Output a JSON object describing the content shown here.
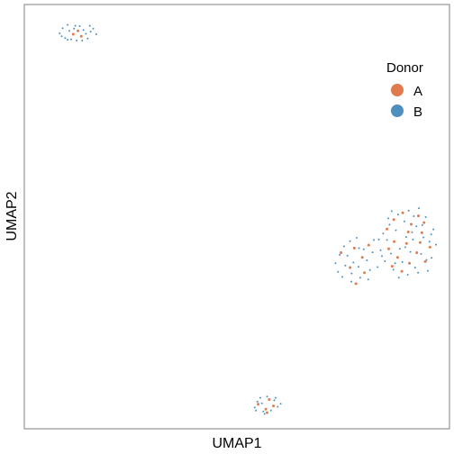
{
  "chart_data": {
    "type": "scatter",
    "title": "",
    "xlabel": "UMAP1",
    "ylabel": "UMAP2",
    "grid": false,
    "legend": {
      "title": "Donor",
      "placement": "top-right",
      "entries": [
        {
          "label": "A",
          "color": "#E07B4F"
        },
        {
          "label": "B",
          "color": "#4F8FC0"
        }
      ]
    },
    "xlim": [
      0,
      100
    ],
    "ylim": [
      0,
      100
    ],
    "series": [
      {
        "name": "A",
        "color": "#E07B4F",
        "points": [
          [
            11.5,
            93.0
          ],
          [
            12.6,
            93.8
          ],
          [
            13.4,
            92.5
          ],
          [
            55.0,
            5.8
          ],
          [
            56.8,
            4.6
          ],
          [
            57.6,
            6.9
          ],
          [
            58.6,
            5.4
          ],
          [
            57.1,
            3.8
          ],
          [
            74.5,
            41.5
          ],
          [
            77.6,
            42.6
          ],
          [
            76.6,
            38.0
          ],
          [
            79.5,
            40.4
          ],
          [
            81.0,
            43.3
          ],
          [
            80.0,
            36.8
          ],
          [
            78.0,
            34.2
          ],
          [
            85.3,
            47.1
          ],
          [
            86.9,
            49.3
          ],
          [
            89.0,
            50.9
          ],
          [
            91.0,
            48.2
          ],
          [
            92.7,
            50.2
          ],
          [
            93.5,
            46.2
          ],
          [
            87.0,
            44.1
          ],
          [
            89.9,
            43.7
          ],
          [
            92.3,
            41.5
          ],
          [
            94.3,
            39.4
          ],
          [
            90.6,
            39.0
          ],
          [
            87.8,
            40.4
          ],
          [
            85.7,
            42.4
          ],
          [
            88.8,
            37.1
          ],
          [
            93.1,
            43.9
          ],
          [
            95.4,
            42.8
          ],
          [
            90.3,
            46.4
          ],
          [
            86.5,
            38.3
          ],
          [
            94.0,
            48.6
          ]
        ]
      },
      {
        "name": "B",
        "color": "#4F8FC0",
        "points": [
          [
            8.3,
            93.2
          ],
          [
            9.0,
            94.4
          ],
          [
            9.6,
            92.1
          ],
          [
            10.2,
            95.2
          ],
          [
            10.6,
            93.8
          ],
          [
            11.0,
            91.8
          ],
          [
            12.0,
            95.0
          ],
          [
            12.3,
            91.5
          ],
          [
            13.0,
            94.9
          ],
          [
            13.9,
            94.0
          ],
          [
            14.5,
            93.1
          ],
          [
            14.9,
            92.0
          ],
          [
            15.6,
            93.6
          ],
          [
            16.2,
            94.3
          ],
          [
            16.9,
            93.0
          ],
          [
            15.4,
            95.0
          ],
          [
            13.6,
            91.5
          ],
          [
            11.7,
            94.3
          ],
          [
            10.2,
            91.7
          ],
          [
            8.8,
            92.5
          ],
          [
            54.2,
            5.0
          ],
          [
            54.8,
            6.4
          ],
          [
            55.5,
            7.3
          ],
          [
            56.2,
            4.1
          ],
          [
            57.1,
            7.6
          ],
          [
            58.0,
            4.3
          ],
          [
            58.8,
            6.7
          ],
          [
            59.6,
            5.2
          ],
          [
            60.3,
            5.9
          ],
          [
            55.9,
            6.0
          ],
          [
            56.5,
            3.5
          ],
          [
            59.1,
            7.3
          ],
          [
            54.5,
            4.3
          ],
          [
            73.2,
            39.0
          ],
          [
            73.8,
            37.0
          ],
          [
            74.8,
            35.8
          ],
          [
            75.2,
            43.0
          ],
          [
            76.0,
            40.8
          ],
          [
            76.6,
            44.2
          ],
          [
            77.0,
            36.6
          ],
          [
            77.4,
            39.2
          ],
          [
            78.2,
            45.0
          ],
          [
            78.6,
            38.2
          ],
          [
            79.0,
            35.6
          ],
          [
            79.8,
            42.3
          ],
          [
            80.6,
            39.7
          ],
          [
            81.3,
            37.4
          ],
          [
            81.9,
            41.6
          ],
          [
            82.2,
            44.5
          ],
          [
            80.9,
            35.2
          ],
          [
            78.7,
            42.6
          ],
          [
            75.5,
            38.5
          ],
          [
            74.2,
            41.0
          ],
          [
            76.9,
            34.7
          ],
          [
            83.4,
            44.6
          ],
          [
            83.8,
            42.1
          ],
          [
            84.4,
            46.0
          ],
          [
            84.8,
            39.5
          ],
          [
            85.3,
            44.5
          ],
          [
            85.9,
            48.1
          ],
          [
            86.2,
            41.3
          ],
          [
            86.8,
            37.5
          ],
          [
            87.4,
            46.8
          ],
          [
            87.9,
            50.5
          ],
          [
            88.3,
            42.4
          ],
          [
            88.9,
            39.3
          ],
          [
            89.4,
            48.9
          ],
          [
            89.8,
            45.2
          ],
          [
            90.4,
            51.4
          ],
          [
            90.8,
            41.7
          ],
          [
            91.4,
            44.6
          ],
          [
            91.9,
            38.0
          ],
          [
            92.2,
            47.7
          ],
          [
            92.8,
            52.0
          ],
          [
            93.3,
            41.2
          ],
          [
            93.9,
            45.1
          ],
          [
            94.4,
            49.9
          ],
          [
            94.9,
            37.2
          ],
          [
            95.3,
            44.1
          ],
          [
            95.8,
            40.3
          ],
          [
            96.2,
            47.0
          ],
          [
            96.8,
            43.4
          ],
          [
            84.1,
            40.7
          ],
          [
            86.4,
            51.3
          ],
          [
            88.1,
            35.6
          ],
          [
            90.2,
            36.3
          ],
          [
            91.6,
            50.1
          ],
          [
            92.6,
            36.8
          ],
          [
            94.6,
            39.8
          ],
          [
            95.7,
            45.8
          ],
          [
            85.6,
            49.6
          ],
          [
            87.2,
            39.0
          ],
          [
            89.6,
            42.8
          ],
          [
            91.2,
            46.3
          ],
          [
            93.6,
            48.0
          ],
          [
            83.1,
            38.1
          ]
        ]
      }
    ]
  }
}
